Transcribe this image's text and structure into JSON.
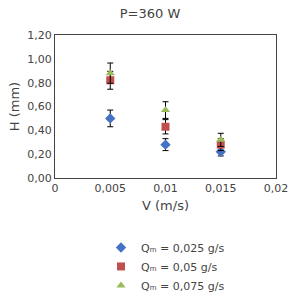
{
  "chart_data": {
    "type": "scatter",
    "title": "P=360 W",
    "xlabel": "V (m/s)",
    "ylabel": "H (mm)",
    "xlim": [
      0,
      0.02
    ],
    "ylim": [
      0.0,
      1.2
    ],
    "xticks": [
      0,
      {
        "value": 0.005,
        "label": "0,005"
      },
      {
        "value": 0.01,
        "label": "0,01"
      },
      {
        "value": 0.015,
        "label": "0,015"
      },
      {
        "value": 0.02,
        "label": "0,02"
      }
    ],
    "yticks": [
      {
        "value": 0.0,
        "label": "0,00"
      },
      {
        "value": 0.2,
        "label": "0,20"
      },
      {
        "value": 0.4,
        "label": "0,40"
      },
      {
        "value": 0.6,
        "label": "0,60"
      },
      {
        "value": 0.8,
        "label": "0,80"
      },
      {
        "value": 1.0,
        "label": "1,00"
      },
      {
        "value": 1.2,
        "label": "1,20"
      }
    ],
    "grid": false,
    "legend": "bottom",
    "series": [
      {
        "name": "Qₘ = 0,025 g/s",
        "color": "#4472C4",
        "marker": "diamond",
        "x": [
          0.005,
          0.01,
          0.015
        ],
        "values": [
          0.5,
          0.28,
          0.22
        ],
        "yerr": [
          0.07,
          0.05,
          0.035
        ]
      },
      {
        "name": "Qₘ = 0,05 g/s",
        "color": "#C0504D",
        "marker": "square",
        "x": [
          0.005,
          0.01,
          0.015
        ],
        "values": [
          0.82,
          0.43,
          0.28
        ],
        "yerr": [
          0.075,
          0.06,
          0.05
        ]
      },
      {
        "name": "Qₘ = 0,075 g/s",
        "color": "#9BBB59",
        "marker": "triangle-up",
        "x": [
          0.005,
          0.01,
          0.015
        ],
        "values": [
          0.88,
          0.57,
          0.32
        ],
        "yerr": [
          0.085,
          0.07,
          0.055
        ]
      }
    ]
  }
}
